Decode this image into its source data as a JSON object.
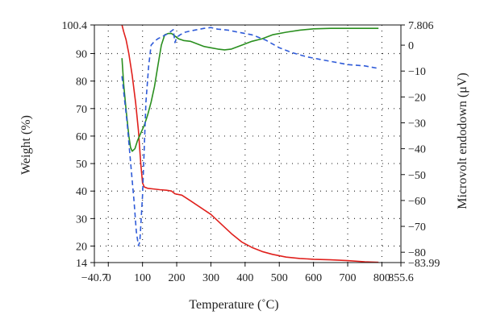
{
  "chart_data": {
    "type": "line",
    "xlabel": "Temperature (˚C)",
    "ylabel_left": "Weight (%)",
    "ylabel_right": "Microvolt endodown (μV)",
    "xlim": [
      -40.7,
      855.6
    ],
    "ylim_left": [
      14,
      100.4
    ],
    "ylim_right": [
      -83.99,
      7.806
    ],
    "grid": true,
    "x_ticks": [
      {
        "v": -40.7,
        "label": "−40.7"
      },
      {
        "v": 0,
        "label": "0"
      },
      {
        "v": 100,
        "label": "100"
      },
      {
        "v": 200,
        "label": "200"
      },
      {
        "v": 300,
        "label": "300"
      },
      {
        "v": 400,
        "label": "400"
      },
      {
        "v": 500,
        "label": "500"
      },
      {
        "v": 600,
        "label": "600"
      },
      {
        "v": 700,
        "label": "700"
      },
      {
        "v": 800,
        "label": "800"
      },
      {
        "v": 855.6,
        "label": "855.6"
      }
    ],
    "y_left_ticks": [
      {
        "v": 14,
        "label": "14"
      },
      {
        "v": 20,
        "label": "20"
      },
      {
        "v": 30,
        "label": "30"
      },
      {
        "v": 40,
        "label": "40"
      },
      {
        "v": 50,
        "label": "50"
      },
      {
        "v": 60,
        "label": "60"
      },
      {
        "v": 70,
        "label": "70"
      },
      {
        "v": 80,
        "label": "80"
      },
      {
        "v": 90,
        "label": "90"
      },
      {
        "v": 100.4,
        "label": "100.4"
      }
    ],
    "y_right_ticks": [
      {
        "v": 7.806,
        "label": "7.806"
      },
      {
        "v": 0,
        "label": "0"
      },
      {
        "v": -10,
        "label": "−10"
      },
      {
        "v": -20,
        "label": "−20"
      },
      {
        "v": -30,
        "label": "−30"
      },
      {
        "v": -40,
        "label": "−40"
      },
      {
        "v": -50,
        "label": "−50"
      },
      {
        "v": -60,
        "label": "−60"
      },
      {
        "v": -70,
        "label": "−70"
      },
      {
        "v": -80,
        "label": "−80"
      },
      {
        "v": -83.99,
        "label": "−83.99"
      }
    ],
    "series": [
      {
        "color": "#e0201c",
        "dash": "solid",
        "axis": "left",
        "x": [
          40,
          45,
          52,
          60,
          70,
          80,
          88,
          95,
          100,
          105,
          115,
          130,
          150,
          170,
          185,
          195,
          215,
          240,
          270,
          300,
          330,
          360,
          390,
          420,
          450,
          480,
          520,
          560,
          600,
          650,
          700,
          750,
          790
        ],
        "y": [
          100.4,
          98,
          95,
          90,
          82,
          72,
          62,
          50,
          43,
          41.5,
          41,
          40.8,
          40.5,
          40.3,
          40,
          39,
          38.5,
          36.5,
          34,
          31.5,
          28,
          24.5,
          21.5,
          19.5,
          18,
          17,
          16,
          15.5,
          15.2,
          15,
          14.7,
          14.3,
          14.1
        ]
      },
      {
        "color": "#2a8f1f",
        "dash": "solid",
        "axis": "right",
        "x": [
          40,
          45,
          52,
          60,
          65,
          70,
          78,
          85,
          95,
          105,
          115,
          125,
          135,
          145,
          155,
          165,
          175,
          185,
          195,
          205,
          220,
          240,
          260,
          280,
          300,
          320,
          340,
          360,
          390,
          420,
          450,
          480,
          520,
          560,
          600,
          650,
          700,
          750,
          790
        ],
        "y": [
          -5,
          -15,
          -25,
          -35,
          -39.5,
          -41,
          -40,
          -37,
          -34,
          -31,
          -27,
          -22,
          -16,
          -8,
          0,
          4,
          4.5,
          4.5,
          3.5,
          2.5,
          1.8,
          1.5,
          0.5,
          -0.5,
          -1,
          -1.5,
          -1.8,
          -1.5,
          0,
          1.5,
          2.5,
          4,
          5,
          5.8,
          6.3,
          6.5,
          6.5,
          6.5,
          6.5
        ]
      },
      {
        "color": "#2f5bd8",
        "dash": "6,4",
        "axis": "right",
        "x": [
          40,
          45,
          55,
          65,
          75,
          82,
          88,
          92,
          95,
          100,
          105,
          110,
          118,
          125,
          135,
          145,
          160,
          175,
          185,
          190,
          195,
          200,
          210,
          225,
          240,
          260,
          280,
          300,
          320,
          350,
          380,
          420,
          460,
          500,
          540,
          580,
          620,
          660,
          700,
          750,
          790
        ],
        "y": [
          -12,
          -18,
          -30,
          -45,
          -60,
          -72,
          -77.5,
          -76,
          -70,
          -58,
          -40,
          -22,
          -8,
          0,
          1.5,
          2.5,
          3.5,
          4.5,
          5.5,
          6,
          1,
          3,
          4,
          5,
          5.5,
          6,
          6.5,
          6.8,
          6.2,
          5.8,
          5,
          4,
          2,
          -1,
          -3,
          -4.5,
          -5.5,
          -6.5,
          -7.5,
          -8,
          -9
        ]
      }
    ]
  }
}
